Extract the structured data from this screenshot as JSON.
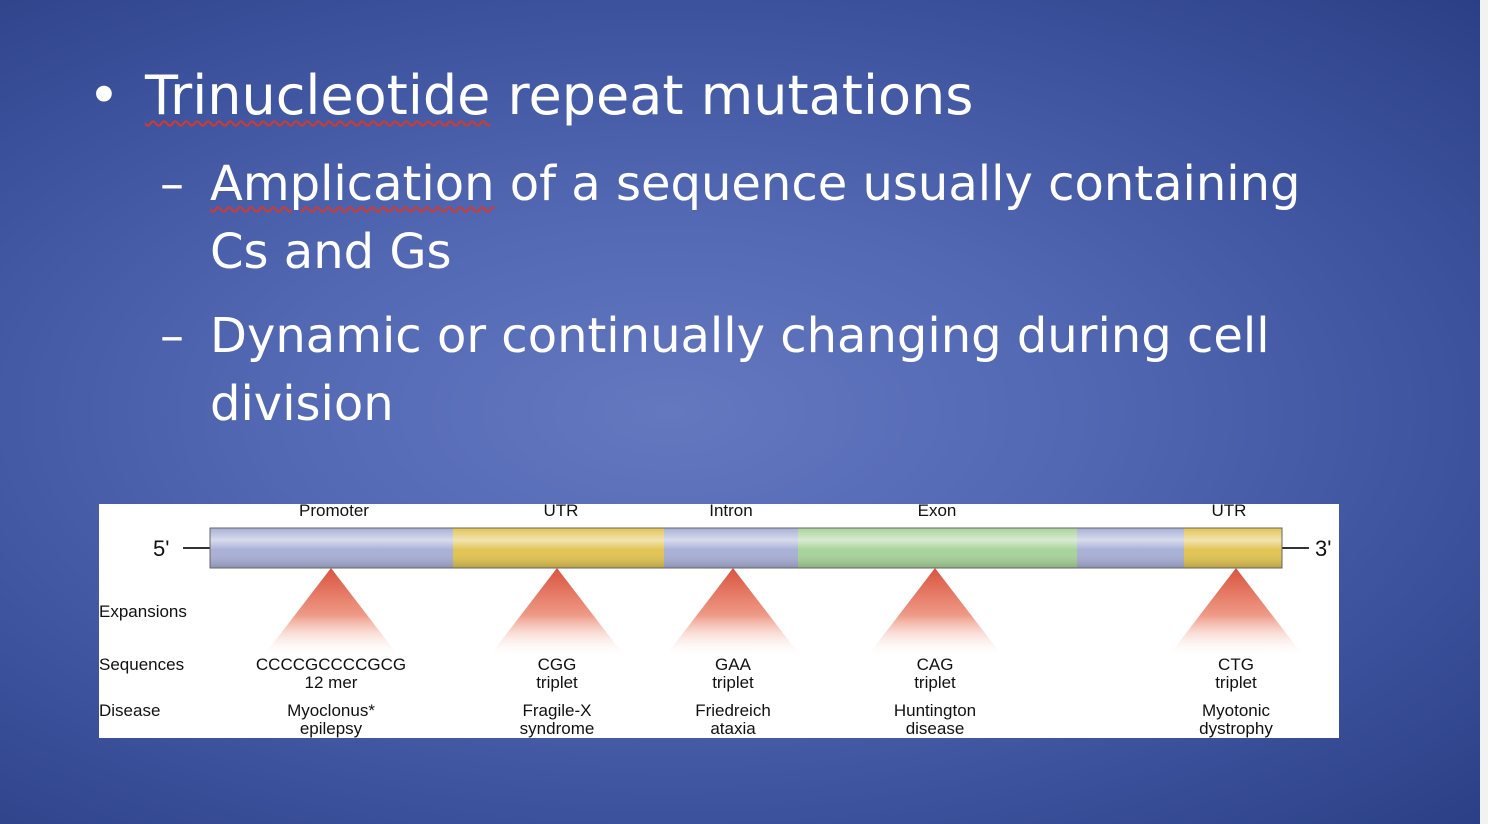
{
  "slide": {
    "bullet_symbol": "•",
    "title_word": "Trinucleotide",
    "title_rest": " repeat mutations",
    "sub1_word": "Amplication",
    "sub1_rest": " of a sequence usually containing Cs and Gs",
    "sub2": "Dynamic or continually changing during cell division",
    "dash": "–"
  },
  "diagram": {
    "end_5": "5'",
    "end_3": "3'",
    "row_labels": {
      "expansions": "Expansions",
      "sequences": "Sequences",
      "disease": "Disease"
    },
    "regions": [
      {
        "name": "Promoter",
        "color": "#a9b0d6"
      },
      {
        "name": "UTR",
        "color": "#e1c453"
      },
      {
        "name": "Intron",
        "color": "#a9b0d6"
      },
      {
        "name": "Exon",
        "color": "#a8d39a"
      },
      {
        "name": "",
        "color": "#a9b0d6"
      },
      {
        "name": "UTR",
        "color": "#e1c453"
      }
    ],
    "expansions": [
      {
        "seq1": "CCCCGCCCCGCG",
        "seq2": "12 mer",
        "dis1": "Myoclonus*",
        "dis2": "epilepsy"
      },
      {
        "seq1": "CGG",
        "seq2": "triplet",
        "dis1": "Fragile-X",
        "dis2": "syndrome"
      },
      {
        "seq1": "GAA",
        "seq2": "triplet",
        "dis1": "Friedreich",
        "dis2": "ataxia"
      },
      {
        "seq1": "CAG",
        "seq2": "triplet",
        "dis1": "Huntington",
        "dis2": "disease"
      },
      {
        "seq1": "CTG",
        "seq2": "triplet",
        "dis1": "Myotonic",
        "dis2": "dystrophy"
      }
    ]
  }
}
